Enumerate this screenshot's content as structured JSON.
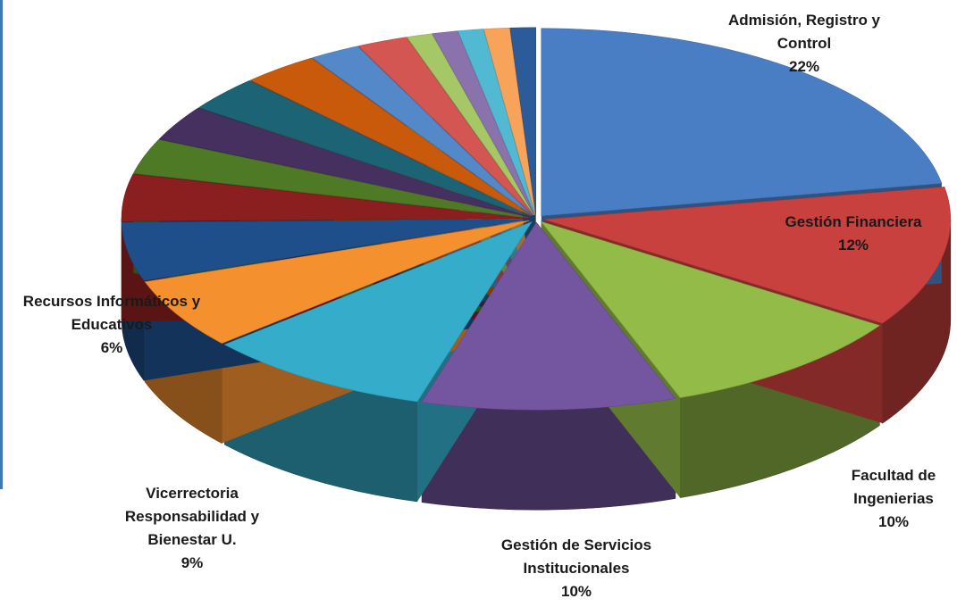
{
  "chart_data": {
    "type": "pie3d",
    "categories": [
      "Admisión, Registro y Control",
      "Gestión Financiera",
      "Facultad de Ingenierias",
      "Gestión de Servicios Institucionales",
      "Vicerrectoria Responsabilidad y Bienestar U.",
      "Recursos Informáticos y Educativos",
      null,
      null,
      null,
      null,
      null,
      null,
      null,
      null,
      null,
      null,
      null,
      null,
      null
    ],
    "values": [
      22,
      12,
      10,
      10,
      9,
      6,
      5,
      4,
      3,
      3,
      3,
      3,
      2,
      2,
      1,
      1,
      1,
      1,
      1
    ],
    "value_labels": [
      "22%",
      "12%",
      "10%",
      "10%",
      "9%",
      "6%",
      null,
      null,
      null,
      null,
      null,
      null,
      null,
      null,
      null,
      null,
      null,
      null,
      null
    ],
    "colors": [
      "#4a7ec4",
      "#c9413e",
      "#93bb48",
      "#7455a0",
      "#35acc9",
      "#f5902f",
      "#1f4f8a",
      "#8b1e1e",
      "#4f7a25",
      "#45305f",
      "#1c6475",
      "#c95a0c",
      "#5389c9",
      "#d45652",
      "#a5c766",
      "#8a72ad",
      "#52b9d3",
      "#f7a45a",
      "#2c5b9a"
    ]
  }
}
